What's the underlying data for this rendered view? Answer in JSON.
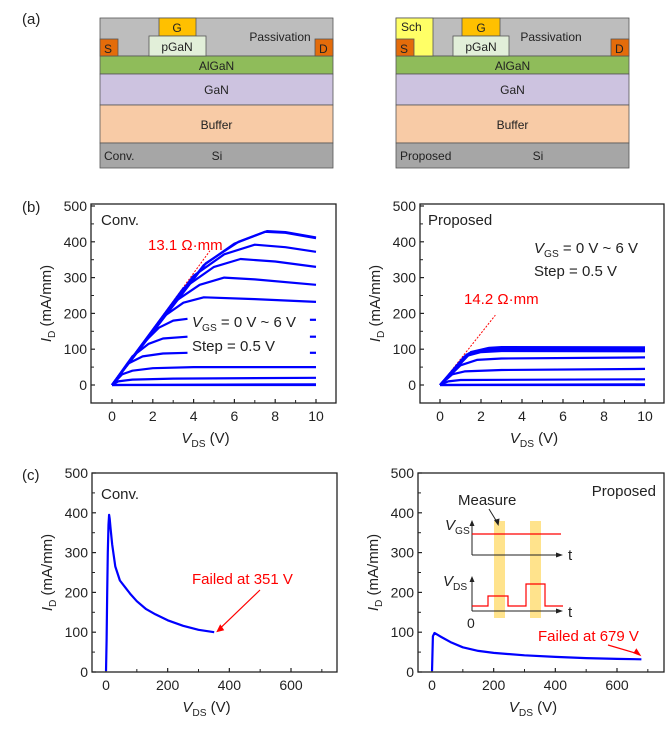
{
  "panel_labels": {
    "a": "(a)",
    "b": "(b)",
    "c": "(c)"
  },
  "colors": {
    "passivation": "#bdbdbd",
    "gate": "#ffc000",
    "pgan": "#e2efd9",
    "source_drain": "#e46c0a",
    "schottky": "#ffff66",
    "algan": "#8fbc5a",
    "gan": "#cdc3e0",
    "buffer": "#f8cba6",
    "si": "#a6a6a6",
    "curve": "#0000ff",
    "annotation": "#ff0000",
    "inset_band": "#ffd966"
  },
  "structures": [
    {
      "name": "Conv.",
      "layers": {
        "passivation": "Passivation",
        "gate": "G",
        "pgan": "pGaN",
        "source": "S",
        "drain": "D",
        "algan": "AlGaN",
        "gan": "GaN",
        "buffer": "Buffer",
        "si": "Si"
      },
      "tag": "Conv.",
      "has_schottky": false
    },
    {
      "name": "Proposed",
      "layers": {
        "passivation": "Passivation",
        "gate": "G",
        "pgan": "pGaN",
        "source": "S",
        "drain": "D",
        "algan": "AlGaN",
        "gan": "GaN",
        "buffer": "Buffer",
        "si": "Si",
        "schottky": "Sch"
      },
      "tag": "Proposed",
      "has_schottky": true
    }
  ],
  "chart_data": [
    {
      "id": "b-conv",
      "type": "line",
      "title": "Conv.",
      "xlabel": "V_DS (V)",
      "ylabel": "I_D (mA/mm)",
      "xlim": [
        -1,
        11.1
      ],
      "ylim": [
        -50,
        500
      ],
      "xticks": [
        0,
        2,
        4,
        6,
        8,
        10
      ],
      "yticks": [
        0,
        100,
        200,
        300,
        400,
        500
      ],
      "annotations": [
        {
          "text": "13.1 Ω·mm",
          "color": "red"
        },
        {
          "text_main": "V",
          "text_sub": "GS",
          "text_rest": " = 0 V ~ 6 V"
        },
        {
          "text": "Step = 0.5 V"
        }
      ],
      "ron_line": {
        "x": [
          0,
          4.8
        ],
        "y": [
          0,
          375
        ]
      },
      "series": [
        {
          "name": "VGS=0.0V",
          "x": [
            0,
            10
          ],
          "y": [
            0,
            0
          ]
        },
        {
          "name": "VGS=0.5V",
          "x": [
            0,
            10
          ],
          "y": [
            0,
            2
          ]
        },
        {
          "name": "VGS=1.0V",
          "x": [
            0,
            0.3,
            1,
            3,
            10
          ],
          "y": [
            0,
            10,
            15,
            18,
            20
          ]
        },
        {
          "name": "VGS=1.5V",
          "x": [
            0,
            0.5,
            1,
            2,
            4,
            10
          ],
          "y": [
            0,
            30,
            40,
            47,
            50,
            50
          ]
        },
        {
          "name": "VGS=2.0V",
          "x": [
            0,
            0.8,
            1.5,
            2.5,
            3.7
          ],
          "y": [
            0,
            60,
            80,
            88,
            90
          ]
        },
        {
          "name": "VGS=2.5V",
          "x": [
            0,
            1,
            1.8,
            2.5,
            3.7
          ],
          "y": [
            0,
            80,
            115,
            130,
            135
          ]
        },
        {
          "name": "VGS=3.0V",
          "x": [
            0,
            1.5,
            2.3,
            3,
            3.7
          ],
          "y": [
            0,
            115,
            160,
            180,
            185
          ]
        },
        {
          "name": "VGS=3.5V",
          "x": [
            0,
            2.5,
            3.5,
            4.5,
            7,
            10
          ],
          "y": [
            0,
            190,
            230,
            245,
            240,
            232
          ]
        },
        {
          "name": "VGS=4.0V",
          "x": [
            0,
            3,
            4.3,
            5.5,
            7,
            10
          ],
          "y": [
            0,
            230,
            280,
            300,
            295,
            280
          ]
        },
        {
          "name": "VGS=4.5V",
          "x": [
            0,
            3.5,
            5,
            6.3,
            8,
            10
          ],
          "y": [
            0,
            270,
            330,
            352,
            345,
            330
          ]
        },
        {
          "name": "VGS=5.0V",
          "x": [
            0,
            4,
            5.5,
            7,
            8.5,
            10
          ],
          "y": [
            0,
            305,
            365,
            392,
            385,
            372
          ]
        },
        {
          "name": "VGS=5.5V",
          "x": [
            0,
            4.5,
            6,
            7.5,
            8.5,
            10
          ],
          "y": [
            0,
            335,
            395,
            428,
            425,
            410
          ]
        },
        {
          "name": "VGS=6.0V",
          "x": [
            0,
            4.6,
            6.2,
            7.6,
            8.5,
            10
          ],
          "y": [
            0,
            340,
            400,
            430,
            427,
            412
          ]
        },
        {
          "name": "VGS=3.0V-tail",
          "x": [
            9.7,
            10
          ],
          "y": [
            182,
            182
          ]
        },
        {
          "name": "VGS=2.5V-tail",
          "x": [
            9.7,
            10
          ],
          "y": [
            135,
            135
          ]
        },
        {
          "name": "VGS=2.0V-tail",
          "x": [
            9.7,
            10
          ],
          "y": [
            90,
            90
          ]
        }
      ]
    },
    {
      "id": "b-proposed",
      "type": "line",
      "title": "Proposed",
      "xlabel": "V_DS (V)",
      "ylabel": "I_D (mA/mm)",
      "xlim": [
        -1,
        11.1
      ],
      "ylim": [
        -50,
        500
      ],
      "xticks": [
        0,
        2,
        4,
        6,
        8,
        10
      ],
      "yticks": [
        0,
        100,
        200,
        300,
        400,
        500
      ],
      "annotations": [
        {
          "text": "14.2 Ω·mm",
          "color": "red"
        },
        {
          "text_main": "V",
          "text_sub": "GS",
          "text_rest": " = 0 V ~ 6 V"
        },
        {
          "text": "Step = 0.5 V"
        }
      ],
      "ron_line": {
        "x": [
          0,
          2.7
        ],
        "y": [
          0,
          195
        ]
      },
      "series": [
        {
          "name": "VGS=0.0V",
          "x": [
            0,
            10
          ],
          "y": [
            0,
            0
          ]
        },
        {
          "name": "VGS=0.5V",
          "x": [
            0,
            10
          ],
          "y": [
            0,
            2
          ]
        },
        {
          "name": "VGS=1.0V",
          "x": [
            0,
            0.4,
            1,
            10
          ],
          "y": [
            0,
            10,
            14,
            16
          ]
        },
        {
          "name": "VGS=1.5V",
          "x": [
            0,
            0.6,
            1.2,
            3,
            10
          ],
          "y": [
            0,
            30,
            38,
            42,
            45
          ]
        },
        {
          "name": "VGS=2.0V",
          "x": [
            0,
            1,
            1.8,
            3,
            10
          ],
          "y": [
            0,
            55,
            70,
            74,
            77
          ]
        },
        {
          "name": "VGS=2.5V",
          "x": [
            0,
            1.2,
            2,
            3,
            10
          ],
          "y": [
            0,
            80,
            92,
            95,
            94
          ]
        },
        {
          "name": "VGS=3.0V",
          "x": [
            0,
            1.3,
            2.1,
            3,
            10
          ],
          "y": [
            0,
            85,
            97,
            99,
            98
          ]
        },
        {
          "name": "VGS=4.0V",
          "x": [
            0,
            1.4,
            2.2,
            3,
            10
          ],
          "y": [
            0,
            88,
            100,
            102,
            101
          ]
        },
        {
          "name": "VGS=5.0V",
          "x": [
            0,
            1.5,
            2.3,
            3,
            10
          ],
          "y": [
            0,
            90,
            102,
            104,
            103
          ]
        },
        {
          "name": "VGS=6.0V",
          "x": [
            0,
            1.5,
            2.4,
            3,
            10
          ],
          "y": [
            0,
            92,
            104,
            106,
            105
          ]
        }
      ]
    },
    {
      "id": "c-conv",
      "type": "line",
      "title": "Conv.",
      "xlabel": "V_DS (V)",
      "ylabel": "I_D (mA/mm)",
      "xlim": [
        -45,
        750
      ],
      "ylim": [
        0,
        500
      ],
      "xticks": [
        0,
        200,
        400,
        600
      ],
      "yticks": [
        0,
        100,
        200,
        300,
        400,
        500
      ],
      "annotations": [
        {
          "text": "Failed at 351 V",
          "color": "red"
        }
      ],
      "failure_point": {
        "x": 351,
        "y": 100
      },
      "series": [
        {
          "name": "Conv.",
          "x": [
            0,
            2,
            4,
            6,
            8,
            10,
            12,
            15,
            20,
            30,
            45,
            60,
            80,
            100,
            130,
            160,
            200,
            250,
            300,
            351
          ],
          "y": [
            0,
            80,
            200,
            300,
            370,
            395,
            385,
            360,
            320,
            265,
            230,
            215,
            195,
            178,
            158,
            145,
            130,
            116,
            106,
            100
          ]
        }
      ]
    },
    {
      "id": "c-proposed",
      "type": "line",
      "title": "Proposed",
      "xlabel": "V_DS (V)",
      "ylabel": "I_D (mA/mm)",
      "xlim": [
        -45,
        750
      ],
      "ylim": [
        0,
        500
      ],
      "xticks": [
        0,
        200,
        400,
        600
      ],
      "yticks": [
        0,
        100,
        200,
        300,
        400,
        500
      ],
      "annotations": [
        {
          "text": "Failed at 679 V",
          "color": "red"
        }
      ],
      "failure_point": {
        "x": 679,
        "y": 32
      },
      "series": [
        {
          "name": "Proposed",
          "x": [
            0,
            3,
            8,
            15,
            30,
            60,
            100,
            150,
            200,
            300,
            400,
            500,
            600,
            679
          ],
          "y": [
            0,
            90,
            98,
            95,
            88,
            75,
            62,
            53,
            48,
            42,
            38,
            35,
            33,
            32
          ]
        }
      ],
      "inset": {
        "label_measure": "Measure",
        "vgs_main": "V",
        "vgs_sub": "GS",
        "vds_main": "V",
        "vds_sub": "DS",
        "t_label": "t",
        "origin_label": "0"
      }
    }
  ],
  "axis_text": {
    "ylabel_main": "I",
    "ylabel_sub": "D",
    "ylabel_rest": " (mA/mm)",
    "xlabel_main": "V",
    "xlabel_sub": "DS",
    "xlabel_rest": " (V)"
  }
}
